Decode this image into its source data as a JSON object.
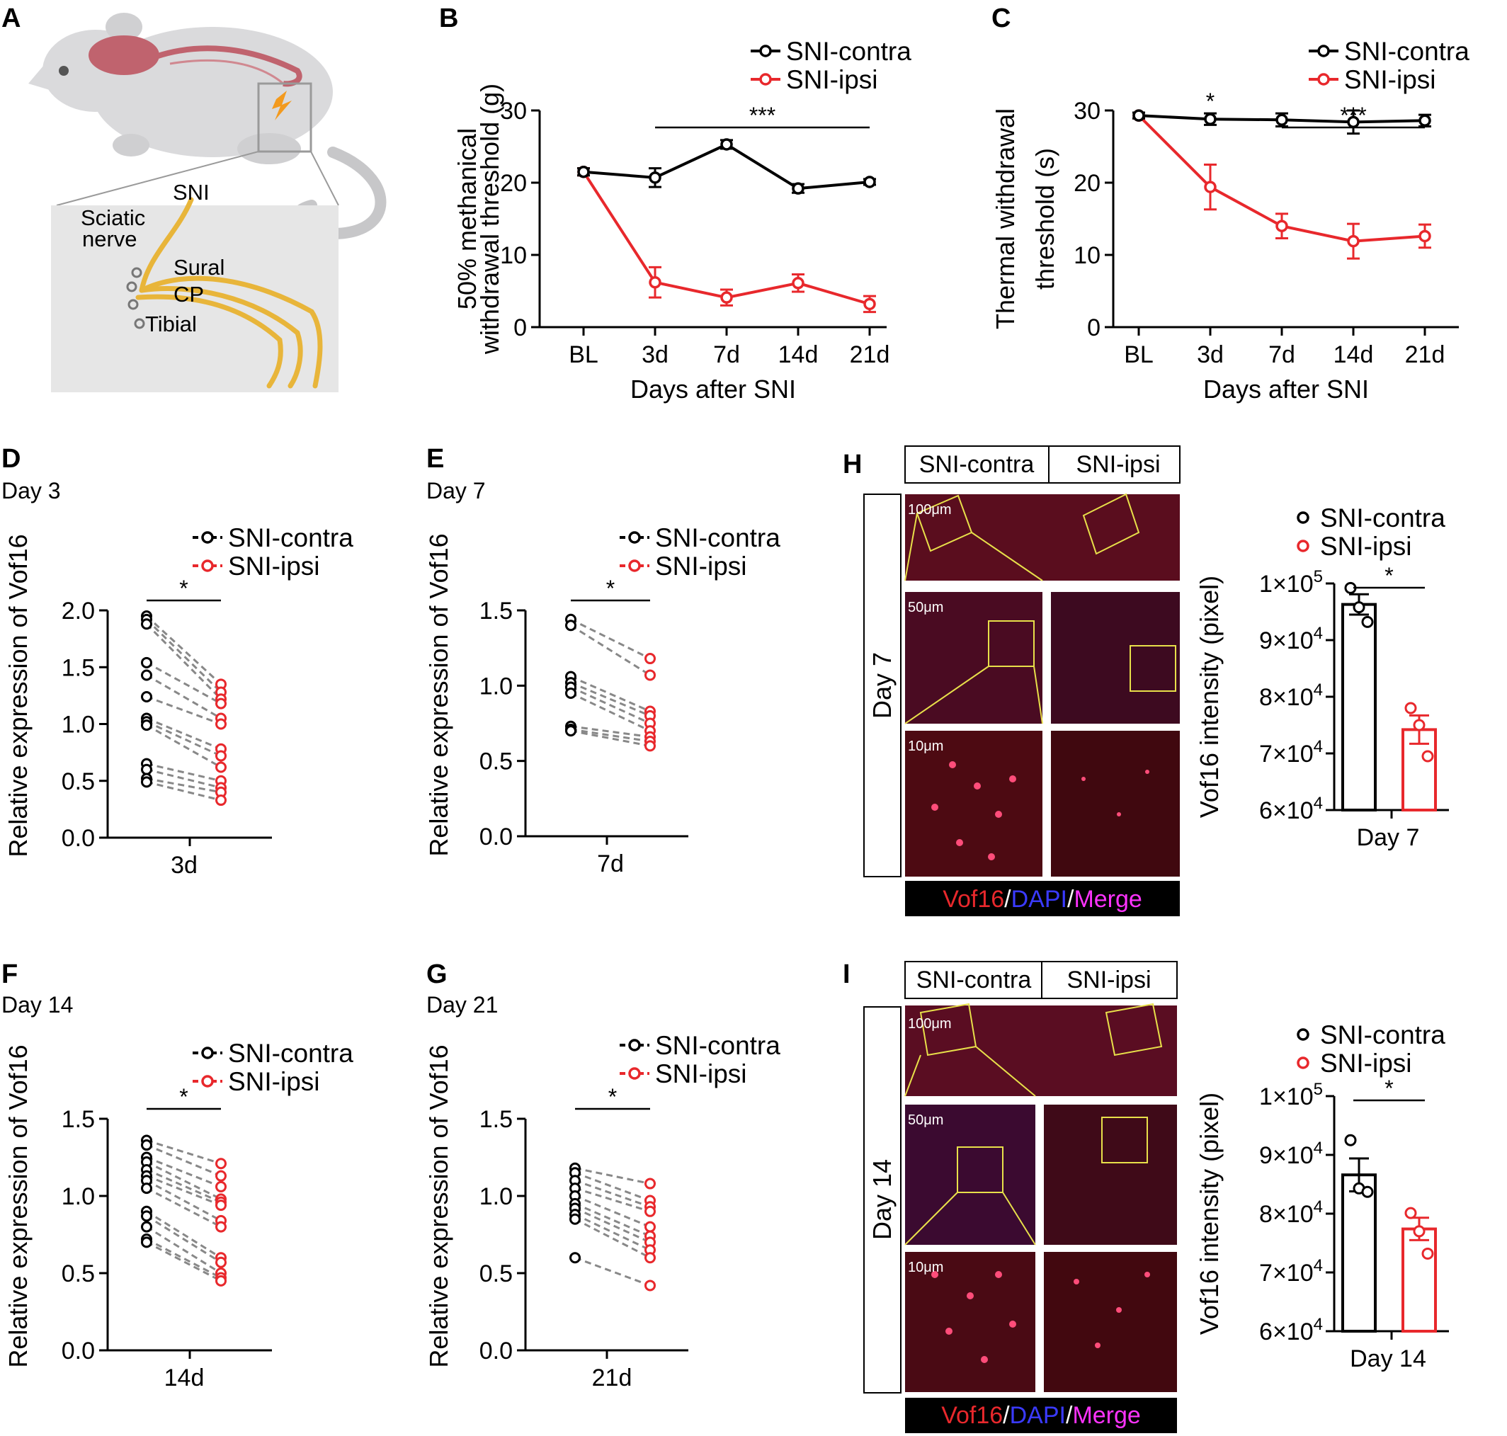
{
  "panels": {
    "A": {
      "letter": "A",
      "labels": {
        "sni": "SNI",
        "sciatic1": "Sciatic",
        "sciatic2": "nerve",
        "sural": "Sural",
        "cp": "CP",
        "tibial": "Tibial"
      }
    },
    "H": {
      "letter": "H",
      "day_label": "Day 7",
      "col1": "SNI-contra",
      "col2": "SNI-ipsi",
      "scales": [
        "100μm",
        "50μm",
        "10μm"
      ],
      "stain": [
        "Vof16",
        "/",
        "DAPI",
        "/",
        "Merge"
      ]
    },
    "I": {
      "letter": "I",
      "day_label": "Day 14",
      "col1": "SNI-contra",
      "col2": "SNI-ipsi",
      "scales": [
        "100μm",
        "50μm",
        "10μm"
      ],
      "stain": [
        "Vof16",
        "/",
        "DAPI",
        "/",
        "Merge"
      ]
    }
  },
  "colors": {
    "contra": "#000000",
    "ipsi": "#e8282c",
    "zoom_box": "#e8e04a",
    "tissue": "#8b1a2e"
  },
  "chart_data": [
    {
      "id": "B",
      "letter": "B",
      "type": "line",
      "categories": [
        "BL",
        "3d",
        "7d",
        "14d",
        "21d"
      ],
      "series": [
        {
          "name": "SNI-contra",
          "color": "#000000",
          "values": [
            21.5,
            20.7,
            25.3,
            19.2,
            20.1
          ],
          "errors": [
            0.5,
            1.3,
            0.6,
            0.6,
            0.4
          ]
        },
        {
          "name": "SNI-ipsi",
          "color": "#e8282c",
          "values": [
            21.5,
            6.2,
            4.1,
            6.1,
            3.2
          ],
          "errors": [
            0.5,
            2.1,
            1.1,
            1.2,
            1.1
          ]
        }
      ],
      "xlabel": "Days after SNI",
      "ylabel_lines": [
        "50% methanical",
        "withdrawal threshold (g)"
      ],
      "ylim": [
        0,
        30
      ],
      "yticks": [
        0,
        10,
        20,
        30
      ],
      "significance": {
        "label": "***",
        "from": "3d",
        "to": "21d"
      },
      "legend": "top-right"
    },
    {
      "id": "C",
      "letter": "C",
      "type": "line",
      "categories": [
        "BL",
        "3d",
        "7d",
        "14d",
        "21d"
      ],
      "series": [
        {
          "name": "SNI-contra",
          "color": "#000000",
          "values": [
            29.3,
            28.8,
            28.7,
            28.4,
            28.6
          ],
          "errors": [
            0.4,
            0.8,
            0.9,
            1.6,
            0.8
          ]
        },
        {
          "name": "SNI-ipsi",
          "color": "#e8282c",
          "values": [
            29.3,
            19.4,
            14.0,
            11.9,
            12.6
          ],
          "errors": [
            0.4,
            3.1,
            1.7,
            2.4,
            1.6
          ]
        }
      ],
      "xlabel": "Days after SNI",
      "ylabel_lines": [
        "Thermal withdrawal",
        "threshold (s)"
      ],
      "ylim": [
        0,
        30
      ],
      "yticks": [
        0,
        10,
        20,
        30
      ],
      "significance": [
        {
          "label": "*",
          "at": "3d"
        },
        {
          "label": "***",
          "from": "7d",
          "to": "21d"
        }
      ],
      "legend": "top-right"
    },
    {
      "id": "D",
      "letter": "D",
      "type": "scatter",
      "subtitle": "Day 3",
      "category": "3d",
      "ylabel": "Relative expression of Vof16",
      "ylim": [
        0,
        2.0
      ],
      "yticks": [
        "0.0",
        "0.5",
        "1.0",
        "1.5",
        "2.0"
      ],
      "series": [
        {
          "name": "SNI-contra",
          "color": "#000000",
          "values": [
            1.95,
            1.92,
            1.88,
            1.54,
            1.43,
            1.24,
            1.05,
            1.02,
            0.99,
            0.65,
            0.6,
            0.52,
            0.49
          ]
        },
        {
          "name": "SNI-ipsi",
          "color": "#e8282c",
          "values": [
            1.35,
            1.28,
            1.22,
            1.18,
            1.05,
            1.0,
            0.78,
            0.72,
            0.62,
            0.5,
            0.44,
            0.4,
            0.33
          ]
        }
      ],
      "significance": "*",
      "legend": "top-right"
    },
    {
      "id": "E",
      "letter": "E",
      "type": "scatter",
      "subtitle": "Day 7",
      "category": "7d",
      "ylabel": "Relative expression of Vof16",
      "ylim": [
        0,
        1.5
      ],
      "yticks": [
        "0.0",
        "0.5",
        "1.0",
        "1.5"
      ],
      "series": [
        {
          "name": "SNI-contra",
          "color": "#000000",
          "values": [
            1.44,
            1.4,
            1.06,
            1.02,
            0.99,
            0.95,
            0.73,
            0.71,
            0.7
          ],
          "colorIdx": 0
        },
        {
          "name": "SNI-ipsi",
          "color": "#e8282c",
          "values": [
            1.18,
            1.07,
            0.83,
            0.8,
            0.75,
            0.7,
            0.66,
            0.63,
            0.6
          ]
        }
      ],
      "significance": "*",
      "legend": "top-right"
    },
    {
      "id": "F",
      "letter": "F",
      "type": "scatter",
      "subtitle": "Day 14",
      "category": "14d",
      "ylabel": "Relative expression of Vof16",
      "ylim": [
        0,
        1.5
      ],
      "yticks": [
        "0.0",
        "0.5",
        "1.0",
        "1.5"
      ],
      "series": [
        {
          "name": "SNI-contra",
          "color": "#000000",
          "values": [
            1.36,
            1.33,
            1.25,
            1.22,
            1.17,
            1.13,
            1.1,
            1.05,
            0.9,
            0.87,
            0.8,
            0.72,
            0.7
          ]
        },
        {
          "name": "SNI-ipsi",
          "color": "#e8282c",
          "values": [
            1.21,
            1.13,
            1.06,
            0.98,
            0.96,
            0.94,
            0.84,
            0.8,
            0.6,
            0.57,
            0.5,
            0.47,
            0.45
          ]
        }
      ],
      "significance": "*",
      "legend": "top-right"
    },
    {
      "id": "G",
      "letter": "G",
      "type": "scatter",
      "subtitle": "Day 21",
      "category": "21d",
      "ylabel": "Relative expression of Vof16",
      "ylim": [
        0,
        1.5
      ],
      "yticks": [
        "0.0",
        "0.5",
        "1.0",
        "1.5"
      ],
      "series": [
        {
          "name": "SNI-contra",
          "color": "#000000",
          "values": [
            1.18,
            1.15,
            1.1,
            1.05,
            1.0,
            0.95,
            0.92,
            0.88,
            0.85,
            0.6
          ]
        },
        {
          "name": "SNI-ipsi",
          "color": "#e8282c",
          "values": [
            1.08,
            0.97,
            0.93,
            0.9,
            0.8,
            0.74,
            0.7,
            0.65,
            0.6,
            0.42
          ]
        }
      ],
      "significance": "*",
      "legend": "top-right"
    },
    {
      "id": "H_bar",
      "letter": "",
      "type": "bar",
      "category": "Day 7",
      "ylabel": "Vof16 intensity (pixel)",
      "ylim": [
        60000,
        100000
      ],
      "yticks": [
        {
          "v": 60000,
          "m": "6",
          "e": "4"
        },
        {
          "v": 70000,
          "m": "7",
          "e": "4"
        },
        {
          "v": 80000,
          "m": "8",
          "e": "4"
        },
        {
          "v": 90000,
          "m": "9",
          "e": "4"
        },
        {
          "v": 100000,
          "m": "1",
          "e": "5"
        }
      ],
      "series": [
        {
          "name": "SNI-contra",
          "color": "#000000",
          "mean": 96300,
          "sem": 1800,
          "points": [
            99200,
            95800,
            93200
          ]
        },
        {
          "name": "SNI-ipsi",
          "color": "#e8282c",
          "mean": 74200,
          "sem": 2500,
          "points": [
            78000,
            75000,
            69500
          ]
        }
      ],
      "significance": "*",
      "legend": "top-right"
    },
    {
      "id": "I_bar",
      "letter": "",
      "type": "bar",
      "category": "Day 14",
      "ylabel": "Vof16 intensity (pixel)",
      "ylim": [
        60000,
        100000
      ],
      "yticks": [
        {
          "v": 60000,
          "m": "6",
          "e": "4"
        },
        {
          "v": 70000,
          "m": "7",
          "e": "4"
        },
        {
          "v": 80000,
          "m": "8",
          "e": "4"
        },
        {
          "v": 90000,
          "m": "9",
          "e": "4"
        },
        {
          "v": 100000,
          "m": "1",
          "e": "5"
        }
      ],
      "series": [
        {
          "name": "SNI-contra",
          "color": "#000000",
          "mean": 86600,
          "sem": 2800,
          "points": [
            92500,
            84300,
            83700
          ]
        },
        {
          "name": "SNI-ipsi",
          "color": "#e8282c",
          "mean": 77400,
          "sem": 1900,
          "points": [
            80100,
            77000,
            73200
          ]
        }
      ],
      "significance": "*",
      "legend": "top-right"
    }
  ]
}
